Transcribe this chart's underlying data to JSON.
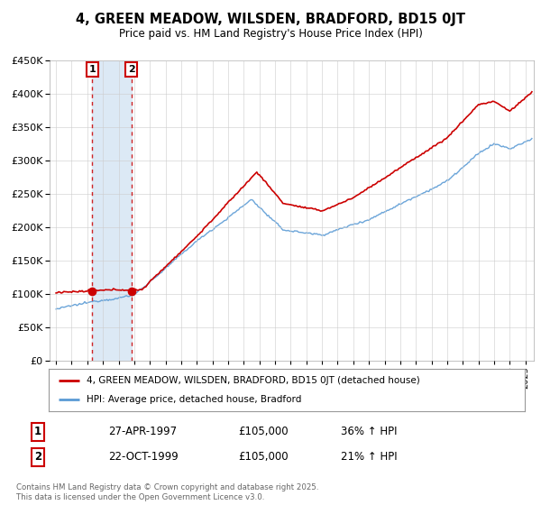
{
  "title": "4, GREEN MEADOW, WILSDEN, BRADFORD, BD15 0JT",
  "subtitle": "Price paid vs. HM Land Registry's House Price Index (HPI)",
  "sale1_date": "27-APR-1997",
  "sale1_price": 105000,
  "sale1_hpi": "36% ↑ HPI",
  "sale2_date": "22-OCT-1999",
  "sale2_price": 105000,
  "sale2_hpi": "21% ↑ HPI",
  "legend_property": "4, GREEN MEADOW, WILSDEN, BRADFORD, BD15 0JT (detached house)",
  "legend_hpi": "HPI: Average price, detached house, Bradford",
  "footnote": "Contains HM Land Registry data © Crown copyright and database right 2025.\nThis data is licensed under the Open Government Licence v3.0.",
  "hpi_color": "#5b9bd5",
  "price_color": "#cc0000",
  "background_color": "#ffffff",
  "plot_bg_color": "#ffffff",
  "span_color": "#dce9f5",
  "ylim": [
    0,
    450000
  ],
  "yticks": [
    0,
    50000,
    100000,
    150000,
    200000,
    250000,
    300000,
    350000,
    400000,
    450000
  ],
  "sale1_year_dec": 1997.32,
  "sale2_year_dec": 1999.81
}
